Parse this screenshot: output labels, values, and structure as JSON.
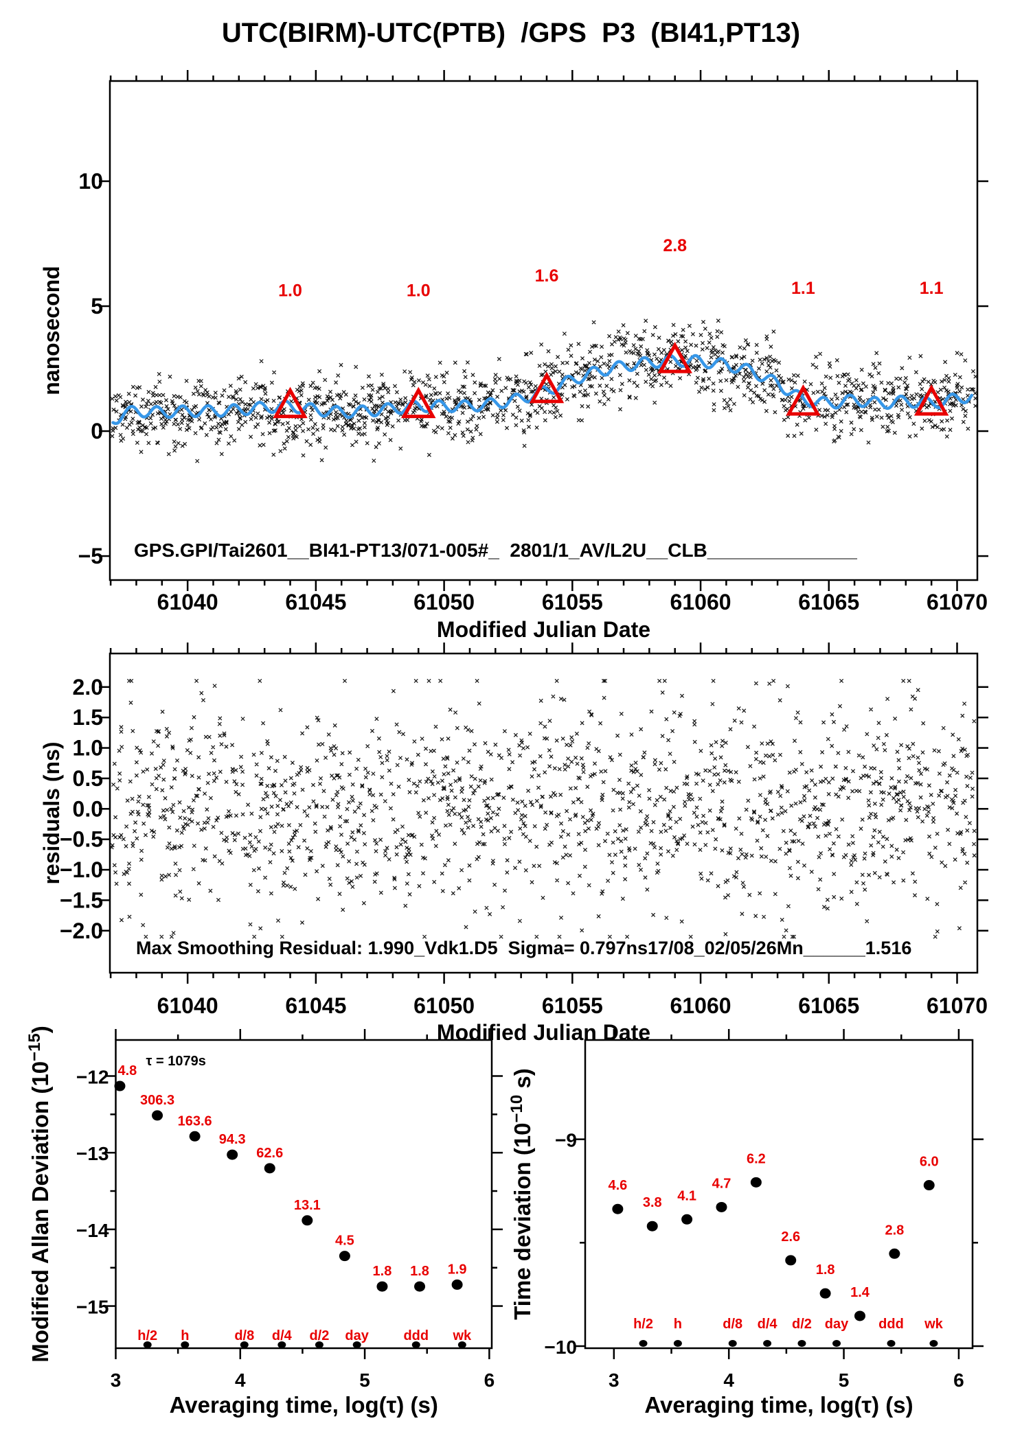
{
  "title": "UTC(BIRM)-UTC(PTB)  /GPS  P3  (BI41,PT13)",
  "chart_data": {
    "panels": [
      {
        "id": "top",
        "type": "scatter+line",
        "xlabel": "Modified Julian Date",
        "ylabel": "nanosecond",
        "xlim": [
          61036.97,
          61070.79
        ],
        "ylim": [
          -5.96,
          14.01
        ],
        "x_ticks": {
          "major": [
            61040,
            61045,
            61050,
            61055,
            61060,
            61065,
            61070
          ],
          "labels": [
            "61040",
            "61045",
            "61050",
            "61055",
            "61060",
            "61065",
            "61070"
          ],
          "minor_step": 1
        },
        "y_ticks": {
          "major": [
            -5,
            0,
            5,
            10
          ],
          "labels": [
            "−5",
            "0",
            "5",
            "10"
          ]
        },
        "annotation": "GPS.GPI/Tai2601__BI41-PT13/071-005#_  2801/1_AV/L2U__CLB______________",
        "scatter": {
          "marker": "x",
          "color": "#111111",
          "seed": 101,
          "sigma": 0.72,
          "clip": 1.85,
          "col_step": 0.075,
          "pts_per_col": [
            2,
            5
          ]
        },
        "smoothed_line": {
          "color": "#3797e8",
          "width": 4.5,
          "wiggle_amp": 0.22,
          "wiggle_period": 1.0,
          "wiggle_phase": 61036.55,
          "trend": [
            [
              61036.97,
              0.3
            ],
            [
              61037.5,
              0.72
            ],
            [
              61038,
              0.8
            ],
            [
              61039,
              0.75
            ],
            [
              61040,
              0.8
            ],
            [
              61041,
              0.8
            ],
            [
              61042,
              0.85
            ],
            [
              61043,
              0.95
            ],
            [
              61044,
              1.0
            ],
            [
              61045,
              0.85
            ],
            [
              61046,
              0.75
            ],
            [
              61047,
              0.8
            ],
            [
              61048,
              0.9
            ],
            [
              61049,
              1.0
            ],
            [
              61050,
              1.0
            ],
            [
              61051,
              1.0
            ],
            [
              61052,
              1.1
            ],
            [
              61053,
              1.3
            ],
            [
              61054,
              1.62
            ],
            [
              61055,
              2.05
            ],
            [
              61056,
              2.4
            ],
            [
              61057,
              2.6
            ],
            [
              61058,
              2.75
            ],
            [
              61059,
              2.82
            ],
            [
              61060,
              2.8
            ],
            [
              61061,
              2.65
            ],
            [
              61062,
              2.4
            ],
            [
              61063,
              1.9
            ],
            [
              61064,
              1.25
            ],
            [
              61065,
              1.1
            ],
            [
              61066,
              1.25
            ],
            [
              61067,
              1.1
            ],
            [
              61068,
              1.2
            ],
            [
              61069,
              1.1
            ],
            [
              61070,
              1.3
            ],
            [
              61070.79,
              1.45
            ]
          ]
        },
        "markers": {
          "shape": "open-triangle",
          "color": "#e80000",
          "x": [
            61044,
            61049,
            61054,
            61059,
            61064,
            61069
          ],
          "y": [
            1.0,
            1.0,
            1.6,
            2.8,
            1.1,
            1.1
          ],
          "labels": [
            "1.0",
            "1.0",
            "1.6",
            "2.8",
            "1.1",
            "1.1"
          ]
        }
      },
      {
        "id": "residuals",
        "type": "scatter",
        "xlabel": "Modified Julian Date",
        "ylabel": "residuals (ns)",
        "xlim": [
          61036.97,
          61070.79
        ],
        "ylim": [
          -2.69,
          2.55
        ],
        "x_ticks": {
          "major": [
            61040,
            61045,
            61050,
            61055,
            61060,
            61065,
            61070
          ],
          "labels": [
            "61040",
            "61045",
            "61050",
            "61055",
            "61060",
            "61065",
            "61070"
          ],
          "minor_step": 1
        },
        "y_ticks": {
          "major": [
            2.0,
            1.5,
            1.0,
            0.5,
            0.0,
            -0.5,
            -1.0,
            -1.5,
            -2.0
          ],
          "labels": [
            "2.0",
            "1.5",
            "1.0",
            "0.5",
            "0.0",
            "−0.5",
            "−1.0",
            "−1.5",
            "−2.0"
          ]
        },
        "annotation": "Max Smoothing Residual: 1.990_Vdk1.D5  Sigma= 0.797ns17/08_02/05/26Mn______1.516",
        "scatter": {
          "marker": "x",
          "color": "#111111",
          "seed": 202,
          "sigma": 0.85,
          "clip": 2.1,
          "col_step": 0.075,
          "pts_per_col": [
            2,
            5
          ]
        }
      },
      {
        "id": "mdev",
        "type": "log-dots",
        "xlabel": "Averaging time, log(τ) (s)",
        "ylabel_parts": [
          {
            "t": "Modified Allan Deviation (10"
          },
          {
            "t": "−15",
            "sup": true
          },
          {
            "t": ")"
          }
        ],
        "xlim": [
          3.0,
          6.02
        ],
        "ylim": [
          -15.55,
          -11.53
        ],
        "x_ticks": {
          "major": [
            3,
            4,
            5,
            6
          ],
          "labels": [
            "3",
            "4",
            "5",
            "6"
          ],
          "minor": [
            3.5,
            4.5,
            5.5
          ]
        },
        "y_ticks": {
          "major": [
            -12,
            -13,
            -14,
            -15
          ],
          "labels": [
            "−12",
            "−13",
            "−14",
            "−15"
          ],
          "minor": [
            -12.5,
            -13.5,
            -14.5
          ]
        },
        "tau_note": "τ = 1079s",
        "points": {
          "logtau": [
            3.033,
            3.334,
            3.635,
            3.936,
            4.237,
            4.538,
            4.839,
            5.14,
            5.441,
            5.742
          ],
          "y": [
            -12.13,
            -12.514,
            -12.786,
            -13.026,
            -13.203,
            -13.883,
            -14.347,
            -14.745,
            -14.745,
            -14.721
          ],
          "labels": [
            "4.8",
            "306.3",
            "163.6",
            "94.3",
            "62.6",
            "13.1",
            "4.5",
            "1.8",
            "1.8",
            "1.9"
          ],
          "first_label_clipped": true
        },
        "categories": {
          "logtau": [
            3.255,
            3.556,
            4.033,
            4.334,
            4.635,
            4.937,
            5.412,
            5.782
          ],
          "labels": [
            "h/2",
            "h",
            "d/8",
            "d/4",
            "d/2",
            "day",
            "ddd",
            "wk"
          ]
        }
      },
      {
        "id": "tdev",
        "type": "log-dots",
        "xlabel": "Averaging time, log(τ) (s)",
        "ylabel_parts": [
          {
            "t": "Time deviation (10"
          },
          {
            "t": "−10",
            "sup": true
          },
          {
            "t": " s)"
          }
        ],
        "xlim": [
          2.75,
          6.12
        ],
        "ylim": [
          -10.01,
          -8.52
        ],
        "x_ticks": {
          "major": [
            3,
            4,
            5,
            6
          ],
          "labels": [
            "3",
            "4",
            "5",
            "6"
          ],
          "minor": [
            3.5,
            4.5,
            5.5
          ]
        },
        "y_ticks": {
          "major": [
            -9,
            -10
          ],
          "labels": [
            "−9",
            "−10"
          ],
          "minor": [
            -9.5
          ]
        },
        "points": {
          "logtau": [
            3.033,
            3.334,
            3.635,
            3.936,
            4.237,
            4.538,
            4.839,
            5.14,
            5.441,
            5.742
          ],
          "y": [
            -9.337,
            -9.42,
            -9.387,
            -9.328,
            -9.208,
            -9.585,
            -9.745,
            -9.854,
            -9.553,
            -9.222
          ],
          "labels": [
            "4.6",
            "3.8",
            "4.1",
            "4.7",
            "6.2",
            "2.6",
            "1.8",
            "1.4",
            "2.8",
            "6.0"
          ]
        },
        "categories": {
          "logtau": [
            3.255,
            3.556,
            4.033,
            4.334,
            4.635,
            4.937,
            5.412,
            5.782
          ],
          "labels": [
            "h/2",
            "h",
            "d/8",
            "d/4",
            "d/2",
            "day",
            "ddd",
            "wk"
          ]
        }
      }
    ],
    "colors": {
      "accent_red": "#e80000",
      "line_blue": "#3797e8",
      "marker_black": "#111111"
    }
  }
}
